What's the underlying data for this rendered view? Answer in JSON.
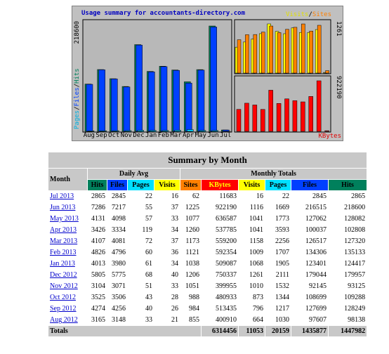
{
  "chart": {
    "title": "Usage summary for accountants-directory.com",
    "legend_left": [
      "Pages",
      "Files",
      "Hits"
    ],
    "separator": "/",
    "legend_top_right": [
      "Visits",
      "Sites"
    ],
    "legend_bottom_right": "KBytes",
    "months": [
      "Aug",
      "Sep",
      "Oct",
      "Nov",
      "Dec",
      "Jan",
      "Feb",
      "Mar",
      "Apr",
      "May",
      "Jun",
      "Jul"
    ],
    "hits_max": 218600,
    "visits_max": 1261,
    "kbytes_max": 922190
  },
  "table": {
    "title": "Summary by Month",
    "month_header": "Month",
    "daily_avg": "Daily Avg",
    "monthly_totals": "Monthly Totals",
    "columns": [
      "Hits",
      "Files",
      "Pages",
      "Visits",
      "Sites",
      "KBytes",
      "Visits",
      "Pages",
      "Files",
      "Hits"
    ],
    "rows": [
      {
        "month": "Jul 2013",
        "values": [
          2865,
          2845,
          22,
          16,
          62,
          11683,
          16,
          22,
          2845,
          2865
        ]
      },
      {
        "month": "Jun 2013",
        "values": [
          7286,
          7217,
          55,
          37,
          1225,
          922190,
          1116,
          1669,
          216515,
          218600
        ]
      },
      {
        "month": "May 2013",
        "values": [
          4131,
          4098,
          57,
          33,
          1077,
          636587,
          1041,
          1773,
          127062,
          128082
        ]
      },
      {
        "month": "Apr 2013",
        "values": [
          3426,
          3334,
          119,
          34,
          1260,
          537785,
          1041,
          3593,
          100037,
          102808
        ]
      },
      {
        "month": "Mar 2013",
        "values": [
          4107,
          4081,
          72,
          37,
          1173,
          559200,
          1158,
          2256,
          126517,
          127320
        ]
      },
      {
        "month": "Feb 2013",
        "values": [
          4826,
          4796,
          60,
          36,
          1121,
          592354,
          1009,
          1707,
          134306,
          135133
        ]
      },
      {
        "month": "Jan 2013",
        "values": [
          4013,
          3980,
          61,
          34,
          1038,
          509087,
          1068,
          1905,
          123401,
          124417
        ]
      },
      {
        "month": "Dec 2012",
        "values": [
          5805,
          5775,
          68,
          40,
          1206,
          750337,
          1261,
          2111,
          179044,
          179957
        ]
      },
      {
        "month": "Nov 2012",
        "values": [
          3104,
          3071,
          51,
          33,
          1051,
          399955,
          1010,
          1532,
          92145,
          93125
        ]
      },
      {
        "month": "Oct 2012",
        "values": [
          3525,
          3506,
          43,
          28,
          988,
          480933,
          873,
          1344,
          108699,
          109288
        ]
      },
      {
        "month": "Sep 2012",
        "values": [
          4274,
          4256,
          40,
          26,
          984,
          513435,
          796,
          1217,
          127699,
          128249
        ]
      },
      {
        "month": "Aug 2012",
        "values": [
          3165,
          3148,
          33,
          21,
          855,
          400910,
          664,
          1030,
          97607,
          98138
        ]
      }
    ],
    "totals_label": "Totals",
    "totals": [
      6314456,
      11053,
      20159,
      1435877,
      1447982
    ]
  }
}
